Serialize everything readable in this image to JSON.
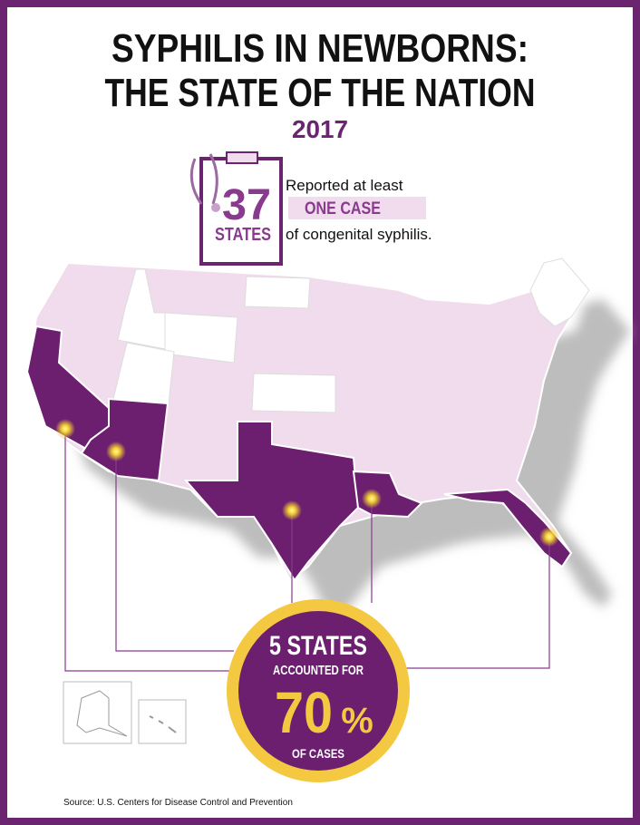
{
  "header": {
    "title_lines": [
      "SYPHILIS IN NEWBORNS:",
      "THE STATE OF THE NATION"
    ],
    "year": "2017"
  },
  "stat": {
    "number": "37",
    "unit": "STATES",
    "text_before": "Reported at least",
    "highlight": "ONE CASE",
    "text_after": "of congenital syphilis."
  },
  "callout": {
    "headline": "5 STATES",
    "subline": "ACCOUNTED FOR",
    "percent_number": "70",
    "percent_sign": "%",
    "footer": "OF CASES"
  },
  "source": "Source: U.S. Centers for Disease Control and Prevention"
}
